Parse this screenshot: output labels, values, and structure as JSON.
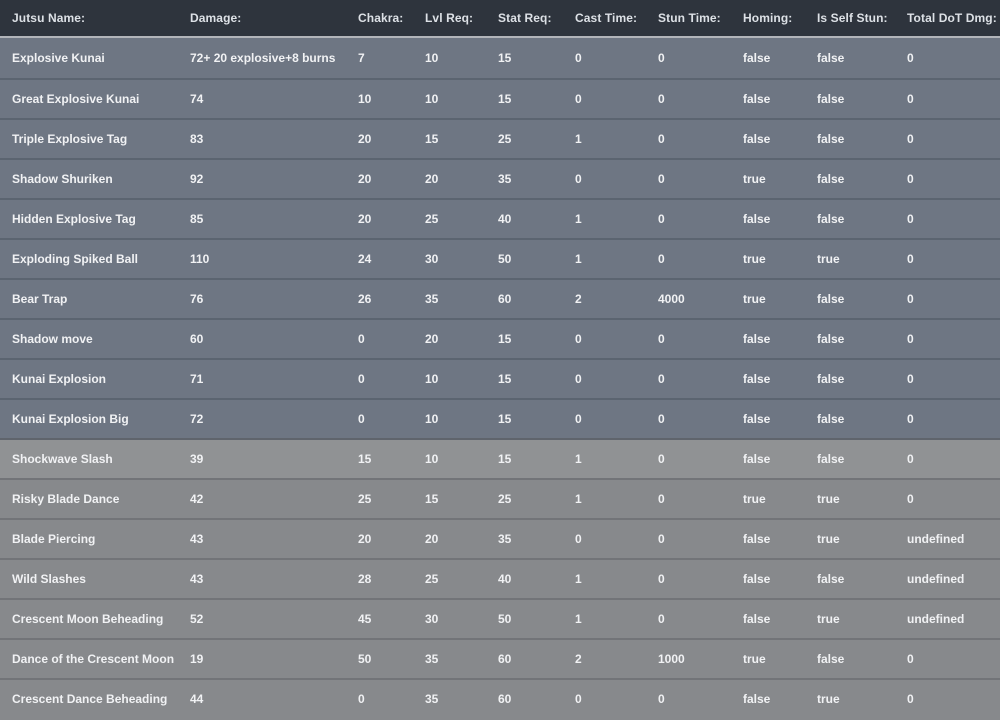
{
  "table": {
    "columns": [
      {
        "key": "jutsu-name",
        "label": "Jutsu Name:"
      },
      {
        "key": "damage",
        "label": "Damage:"
      },
      {
        "key": "chakra",
        "label": "Chakra:"
      },
      {
        "key": "lvl-req",
        "label": "Lvl Req:"
      },
      {
        "key": "stat-req",
        "label": "Stat Req:"
      },
      {
        "key": "cast-time",
        "label": "Cast Time:"
      },
      {
        "key": "stun-time",
        "label": "Stun Time:"
      },
      {
        "key": "homing",
        "label": "Homing:"
      },
      {
        "key": "is-self-stun",
        "label": "Is Self Stun:"
      },
      {
        "key": "total-dot-dmg",
        "label": "Total DoT Dmg:"
      }
    ],
    "rows": [
      {
        "theme": "slate",
        "cells": [
          "Explosive Kunai",
          "72+ 20 explosive+8 burns",
          "7",
          "10",
          "15",
          "0",
          "0",
          "false",
          "false",
          "0"
        ]
      },
      {
        "theme": "slate",
        "cells": [
          "Great Explosive Kunai",
          "74",
          "10",
          "10",
          "15",
          "0",
          "0",
          "false",
          "false",
          "0"
        ]
      },
      {
        "theme": "slate",
        "cells": [
          "Triple Explosive Tag",
          "83",
          "20",
          "15",
          "25",
          "1",
          "0",
          "false",
          "false",
          "0"
        ]
      },
      {
        "theme": "slate",
        "cells": [
          "Shadow Shuriken",
          "92",
          "20",
          "20",
          "35",
          "0",
          "0",
          "true",
          "false",
          "0"
        ]
      },
      {
        "theme": "slate",
        "cells": [
          "Hidden Explosive Tag",
          "85",
          "20",
          "25",
          "40",
          "1",
          "0",
          "false",
          "false",
          "0"
        ]
      },
      {
        "theme": "slate",
        "cells": [
          "Exploding Spiked Ball",
          "110",
          "24",
          "30",
          "50",
          "1",
          "0",
          "true",
          "true",
          "0"
        ]
      },
      {
        "theme": "slate",
        "cells": [
          "Bear Trap",
          "76",
          "26",
          "35",
          "60",
          "2",
          "4000",
          "true",
          "false",
          "0"
        ]
      },
      {
        "theme": "slate",
        "cells": [
          "Shadow move",
          "60",
          "0",
          "20",
          "15",
          "0",
          "0",
          "false",
          "false",
          "0"
        ]
      },
      {
        "theme": "slate",
        "cells": [
          "Kunai Explosion",
          "71",
          "0",
          "10",
          "15",
          "0",
          "0",
          "false",
          "false",
          "0"
        ]
      },
      {
        "theme": "slate",
        "cells": [
          "Kunai Explosion Big",
          "72",
          "0",
          "10",
          "15",
          "0",
          "0",
          "false",
          "false",
          "0"
        ]
      },
      {
        "theme": "gray-light",
        "cells": [
          "Shockwave Slash",
          "39",
          "15",
          "10",
          "15",
          "1",
          "0",
          "false",
          "false",
          "0"
        ]
      },
      {
        "theme": "gray",
        "cells": [
          "Risky Blade Dance",
          "42",
          "25",
          "15",
          "25",
          "1",
          "0",
          "true",
          "true",
          "0"
        ]
      },
      {
        "theme": "gray",
        "cells": [
          "Blade Piercing",
          "43",
          "20",
          "20",
          "35",
          "0",
          "0",
          "false",
          "true",
          "undefined"
        ]
      },
      {
        "theme": "gray",
        "cells": [
          "Wild Slashes",
          "43",
          "28",
          "25",
          "40",
          "1",
          "0",
          "false",
          "false",
          "undefined"
        ]
      },
      {
        "theme": "gray",
        "cells": [
          "Crescent Moon Beheading",
          "52",
          "45",
          "30",
          "50",
          "1",
          "0",
          "false",
          "true",
          "undefined"
        ]
      },
      {
        "theme": "gray",
        "cells": [
          "Dance of the Crescent Moon",
          "19",
          "50",
          "35",
          "60",
          "2",
          "1000",
          "true",
          "false",
          "0"
        ]
      },
      {
        "theme": "gray",
        "cells": [
          "Crescent Dance Beheading",
          "44",
          "0",
          "35",
          "60",
          "0",
          "0",
          "false",
          "true",
          "0"
        ]
      }
    ]
  },
  "colors": {
    "header_bg": "#2e343d",
    "header_text": "#dde1e6",
    "header_divider": "#b2b5ba",
    "row_slate_bg": "#6e7683",
    "row_slate_divider": "#5b6470",
    "row_gray_bg": "#87898c",
    "row_gray_light_bg": "#909294",
    "row_gray_divider": "#727478",
    "cell_text": "#f1f2f4"
  }
}
